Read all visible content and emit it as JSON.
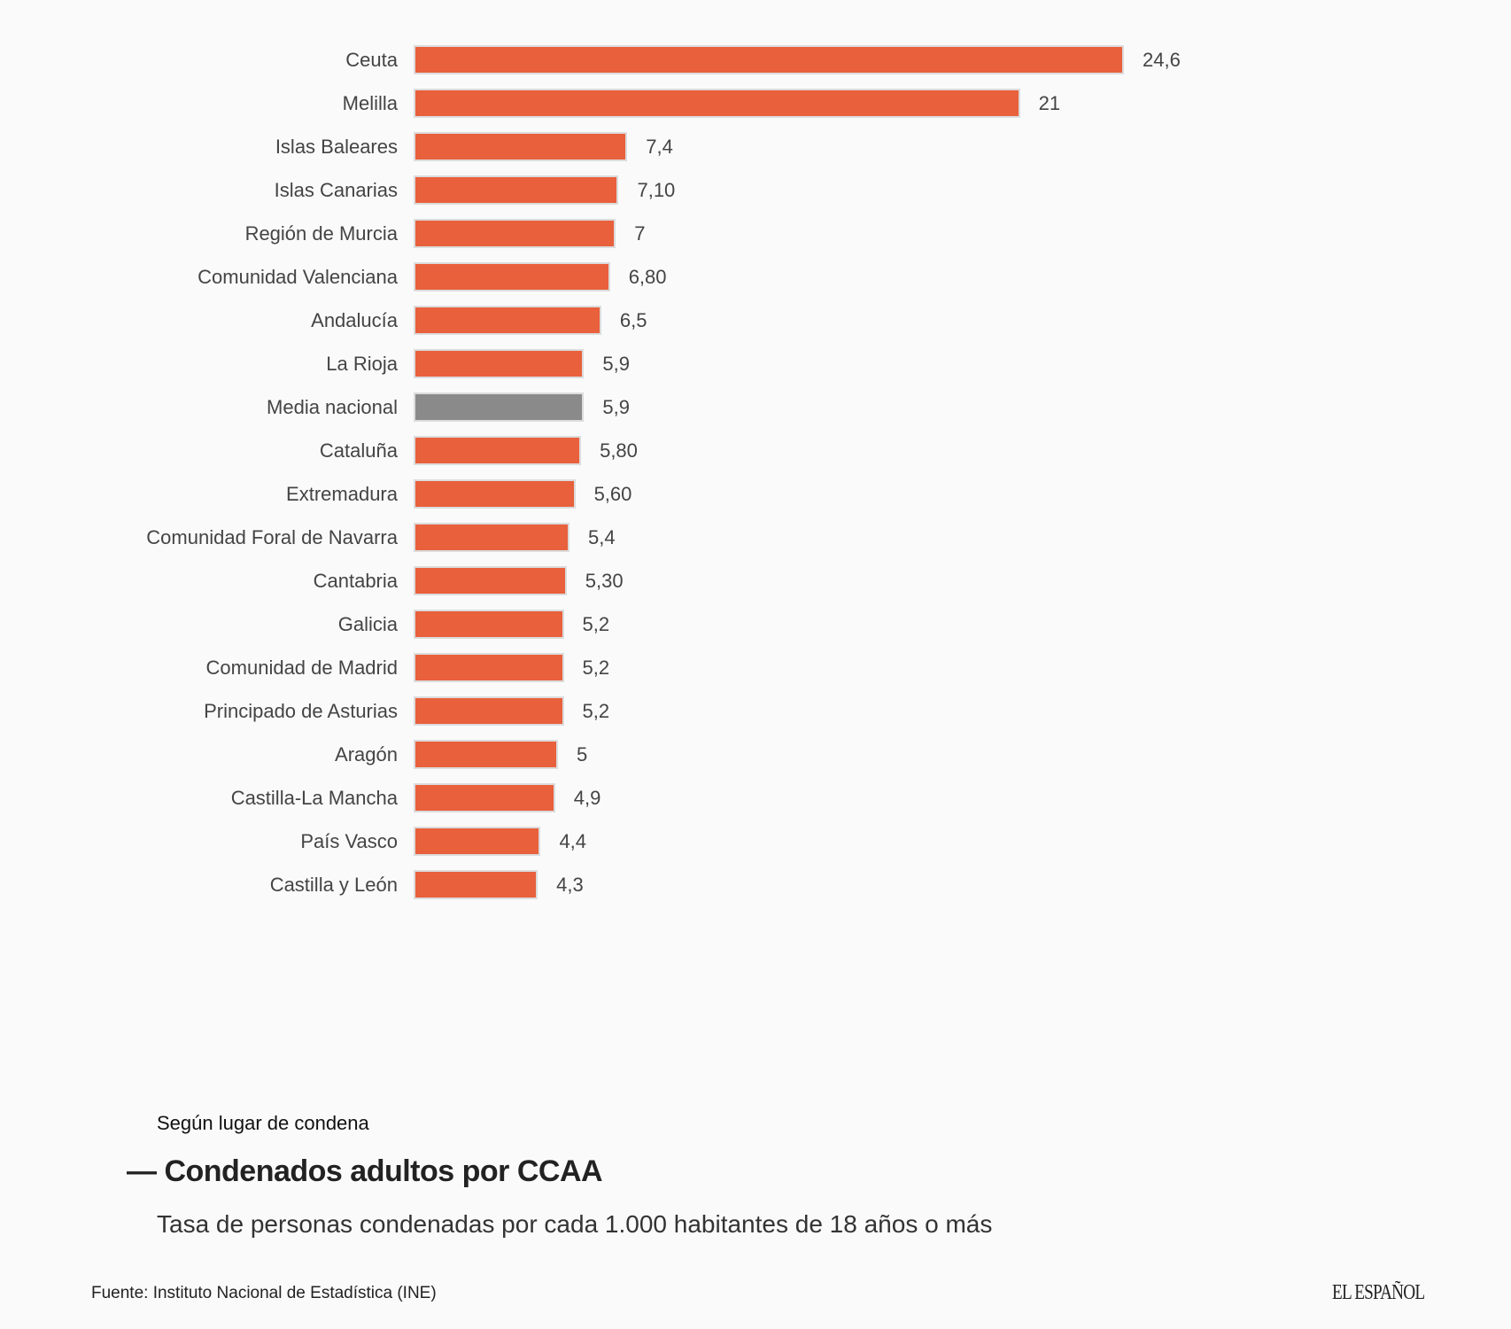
{
  "chart_data": {
    "type": "bar",
    "orientation": "horizontal",
    "categories": [
      "Ceuta",
      "Melilla",
      "Islas Baleares",
      "Islas Canarias",
      "Región de Murcia",
      "Comunidad Valenciana",
      "Andalucía",
      "La Rioja",
      "Media nacional",
      "Cataluña",
      "Extremadura",
      "Comunidad Foral de Navarra",
      "Cantabria",
      "Galicia",
      "Comunidad de Madrid",
      "Principado de Asturias",
      "Aragón",
      "Castilla-La Mancha",
      "País Vasco",
      "Castilla y León"
    ],
    "values": [
      24.6,
      21,
      7.4,
      7.1,
      7,
      6.8,
      6.5,
      5.9,
      5.9,
      5.8,
      5.6,
      5.4,
      5.3,
      5.2,
      5.2,
      5.2,
      5,
      4.9,
      4.4,
      4.3
    ],
    "value_labels": [
      "24,6",
      "21",
      "7,4",
      "7,10",
      "7",
      "6,80",
      "6,5",
      "5,9",
      "5,9",
      "5,80",
      "5,60",
      "5,4",
      "5,30",
      "5,2",
      "5,2",
      "5,2",
      "5",
      "4,9",
      "4,4",
      "4,3"
    ],
    "highlight_category": "Media nacional",
    "xlim": [
      0,
      24.6
    ],
    "grid": false,
    "colors": {
      "bar": "#E8603C",
      "highlight": "#8A8A8A",
      "bar_border": "#DCDCDC"
    }
  },
  "footer": {
    "kicker": "Según lugar de condena",
    "title": "— Condenados adultos por CCAA",
    "subtitle": "Tasa de personas condenadas por cada 1.000 habitantes de 18 años o más",
    "source": "Fuente: Instituto Nacional de Estadística (INE)",
    "logo": "EL ESPAÑOL"
  }
}
